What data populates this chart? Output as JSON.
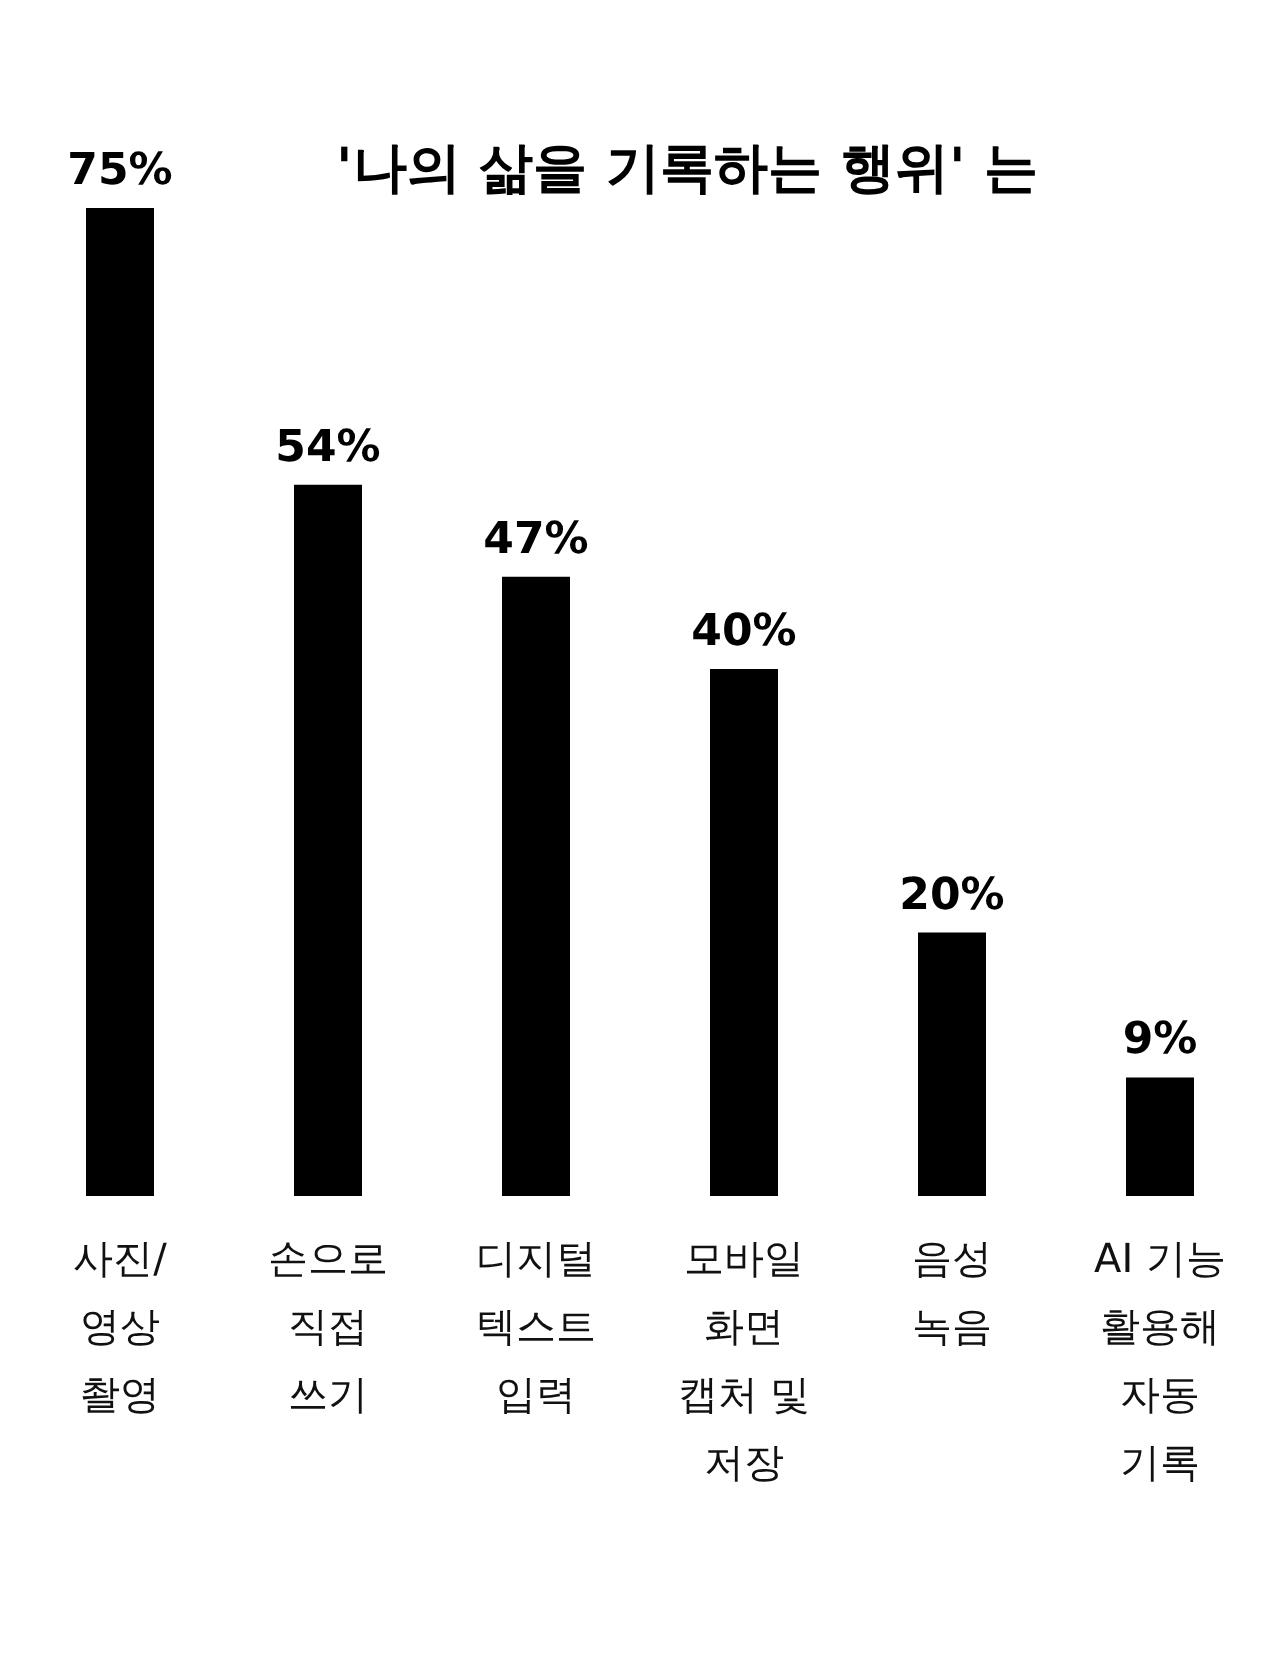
{
  "chart_data": {
    "type": "bar",
    "title": "'나의 삶을 기록하는 행위' 는",
    "categories": [
      "사진/\n영상\n촬영",
      "손으로\n직접\n쓰기",
      "디지털\n텍스트\n입력",
      "모바일\n화면\n캡처 및\n저장",
      "음성\n녹음",
      "AI 기능\n활용해\n자동\n기록"
    ],
    "values": [
      75,
      54,
      47,
      40,
      20,
      9
    ],
    "value_labels": [
      "75%",
      "54%",
      "47%",
      "40%",
      "20%",
      "9%"
    ],
    "color": "#000000"
  }
}
